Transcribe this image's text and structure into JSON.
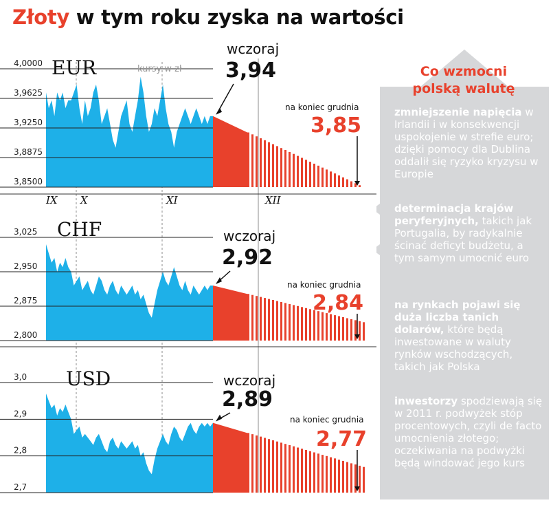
{
  "title": {
    "accent": "Złoty",
    "rest": " w tym roku zyska na wartości"
  },
  "months": [
    "IX",
    "X",
    "XI",
    "XII"
  ],
  "units_label": "kursy w zł",
  "label_yesterday": "wczoraj",
  "label_end_dec": "na koniec grudnia",
  "sidebar": {
    "heading": [
      "Co wzmocni",
      "polską walutę"
    ],
    "items": [
      {
        "bold": "zmniejszenie napięcia",
        "text": " w Irlandii i w konsekwencji uspokojenie w strefie euro; dzięki pomocy dla Dublina oddalił się ryzyko kryzysu w Europie"
      },
      {
        "bold": "determinacja krajów peryferyjnych,",
        "text": " takich jak Portugalia, by radykalnie ścinać deficyt budżetu, a tym samym umocnić euro"
      },
      {
        "bold": "na rynkach pojawi się duża liczba tanich dolarów,",
        "text": " które będą inwestowane w waluty rynków wschodzących, takich jak Polska"
      },
      {
        "bold": "inwestorzy",
        "text": " spodziewają się w 2011 r. podwyżek stóp procentowych, czyli de facto umocnienia złotego; oczekiwania na podwyżki będą windować jego kurs"
      }
    ]
  },
  "colors": {
    "historical": "#1eb0e8",
    "forecast": "#e8412c",
    "sidebar": "#d6d7d9",
    "accent": "#e8412c"
  },
  "chart_data": [
    {
      "type": "area",
      "currency": "EUR",
      "ylim": [
        3.85,
        4.0
      ],
      "yticks": [
        "4,0000",
        "3,9625",
        "3,9250",
        "3,8875",
        "3,8500"
      ],
      "yesterday": "3,94",
      "yesterday_value": 3.94,
      "end_december": "3,85",
      "end_december_value": 3.85,
      "values": [
        3.97,
        3.95,
        3.96,
        3.94,
        3.97,
        3.96,
        3.97,
        3.95,
        3.96,
        3.96,
        3.97,
        3.98,
        3.95,
        3.93,
        3.96,
        3.94,
        3.95,
        3.97,
        3.98,
        3.96,
        3.93,
        3.94,
        3.95,
        3.93,
        3.91,
        3.9,
        3.92,
        3.94,
        3.95,
        3.96,
        3.93,
        3.92,
        3.94,
        3.96,
        3.99,
        3.97,
        3.94,
        3.92,
        3.93,
        3.95,
        3.94,
        3.96,
        3.98,
        3.95,
        3.93,
        3.92,
        3.9,
        3.92,
        3.93,
        3.94,
        3.95,
        3.94,
        3.93,
        3.94,
        3.95,
        3.94,
        3.93,
        3.94,
        3.93,
        3.94,
        3.94
      ]
    },
    {
      "type": "area",
      "currency": "CHF",
      "ylim": [
        2.8,
        3.025
      ],
      "yticks": [
        "3,025",
        "2,950",
        "2,875",
        "2,800"
      ],
      "yesterday": "2,92",
      "yesterday_value": 2.92,
      "end_december": "2,84",
      "end_december_value": 2.84,
      "values": [
        3.01,
        2.99,
        2.97,
        2.98,
        2.95,
        2.97,
        2.96,
        2.98,
        2.96,
        2.95,
        2.92,
        2.93,
        2.94,
        2.91,
        2.92,
        2.93,
        2.91,
        2.9,
        2.92,
        2.94,
        2.93,
        2.91,
        2.9,
        2.92,
        2.93,
        2.91,
        2.9,
        2.92,
        2.91,
        2.9,
        2.91,
        2.92,
        2.9,
        2.91,
        2.89,
        2.9,
        2.88,
        2.86,
        2.85,
        2.88,
        2.91,
        2.93,
        2.95,
        2.93,
        2.92,
        2.94,
        2.96,
        2.94,
        2.92,
        2.91,
        2.93,
        2.91,
        2.9,
        2.92,
        2.91,
        2.9,
        2.91,
        2.92,
        2.91,
        2.92,
        2.92
      ]
    },
    {
      "type": "area",
      "currency": "USD",
      "ylim": [
        2.7,
        3.0
      ],
      "yticks": [
        "3,0",
        "2,9",
        "2,8",
        "2,7"
      ],
      "yesterday": "2,89",
      "yesterday_value": 2.89,
      "end_december": "2,77",
      "end_december_value": 2.77,
      "values": [
        2.97,
        2.95,
        2.93,
        2.94,
        2.91,
        2.93,
        2.92,
        2.94,
        2.92,
        2.9,
        2.86,
        2.87,
        2.88,
        2.85,
        2.86,
        2.85,
        2.84,
        2.83,
        2.85,
        2.86,
        2.84,
        2.82,
        2.81,
        2.84,
        2.85,
        2.83,
        2.82,
        2.84,
        2.83,
        2.82,
        2.83,
        2.84,
        2.82,
        2.83,
        2.8,
        2.81,
        2.78,
        2.76,
        2.75,
        2.79,
        2.82,
        2.84,
        2.86,
        2.84,
        2.83,
        2.86,
        2.88,
        2.87,
        2.85,
        2.84,
        2.86,
        2.88,
        2.89,
        2.87,
        2.86,
        2.88,
        2.89,
        2.88,
        2.89,
        2.88,
        2.89
      ]
    }
  ]
}
